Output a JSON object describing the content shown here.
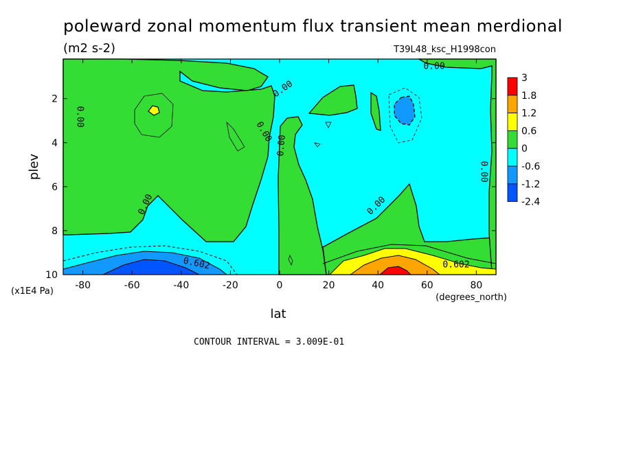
{
  "chart_data": {
    "type": "heatmap",
    "title": "poleward zonal momentum flux transient mean merdional",
    "units": "(m2 s-2)",
    "run_id": "T39L48_ksc_H1998con",
    "xlabel": "lat",
    "xunits": "(degrees_north)",
    "ylabel": "plev",
    "yunits": "(x1E4 Pa)",
    "xlim": [
      -88,
      88
    ],
    "ylim": [
      10,
      0.2
    ],
    "xticks": [
      "-80",
      "-60",
      "-40",
      "-20",
      "0",
      "20",
      "40",
      "60",
      "80"
    ],
    "yticks": [
      "2",
      "4",
      "6",
      "8",
      "10"
    ],
    "contour_interval_text": "CONTOUR INTERVAL = 3.009E-01",
    "contour_labels": [
      "0.00",
      "0.00",
      "0.00",
      "0.00",
      "0.00",
      "0.00",
      "0.00",
      "0.00",
      "0.602",
      "0.602"
    ],
    "legend": {
      "placement": "right",
      "labels": [
        "3",
        "1.8",
        "1.2",
        "0.6",
        "0",
        "-0.6",
        "-1.2",
        "-2.4"
      ],
      "colors": [
        "#ff0000",
        "#ffa500",
        "#ffff00",
        "#33dd33",
        "#00ffff",
        "#1199ff",
        "#0055ff"
      ]
    }
  }
}
